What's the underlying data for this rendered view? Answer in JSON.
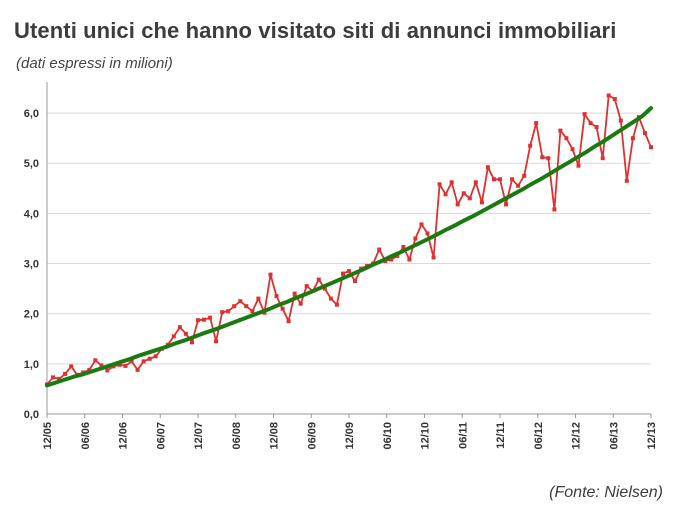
{
  "header": {
    "title": "Utenti unici che hanno visitato siti di annunci immobiliari",
    "subtitle": "(dati espressi in milioni)"
  },
  "footer": {
    "source": "(Fonte: Nielsen)"
  },
  "chart_data": {
    "type": "line",
    "title": "Utenti unici che hanno visitato siti di annunci immobiliari",
    "subtitle": "(dati espressi in milioni)",
    "ylim": [
      0,
      6.5
    ],
    "yticks": [
      "0,0",
      "1,0",
      "2,0",
      "3,0",
      "4,0",
      "5,0",
      "6,0"
    ],
    "ytick_values": [
      0,
      1,
      2,
      3,
      4,
      5,
      6
    ],
    "xticks": [
      "12/05",
      "06/06",
      "12/06",
      "06/07",
      "12/07",
      "06/08",
      "12/08",
      "06/09",
      "12/09",
      "06/10",
      "12/10",
      "06/11",
      "12/11",
      "06/12",
      "12/12",
      "06/13",
      "12/13"
    ],
    "grid": "horizontal",
    "colors": {
      "data": "#e03030",
      "trend": "#1a7a10",
      "grid": "#d9d9d9"
    },
    "series": [
      {
        "type": "line",
        "values": [
          0.59,
          0.73,
          0.7,
          0.8,
          0.95,
          0.78,
          0.83,
          0.88,
          1.07,
          0.97,
          0.87,
          0.95,
          0.98,
          0.96,
          1.05,
          0.88,
          1.05,
          1.1,
          1.15,
          1.3,
          1.38,
          1.55,
          1.73,
          1.6,
          1.43,
          1.87,
          1.88,
          1.92,
          1.45,
          2.03,
          2.05,
          2.15,
          2.25,
          2.15,
          2.05,
          2.3,
          2.02,
          2.78,
          2.35,
          2.1,
          1.85,
          2.4,
          2.2,
          2.55,
          2.45,
          2.68,
          2.5,
          2.3,
          2.18,
          2.8,
          2.85,
          2.65,
          2.9,
          2.95,
          3.0,
          3.28,
          3.05,
          3.08,
          3.15,
          3.33,
          3.08,
          3.5,
          3.78,
          3.6,
          3.12,
          4.58,
          4.38,
          4.62,
          4.18,
          4.4,
          4.3,
          4.62,
          4.22,
          4.92,
          4.68,
          4.68,
          4.18,
          4.68,
          4.55,
          4.75,
          5.35,
          5.8,
          5.12,
          5.1,
          4.08,
          5.65,
          5.5,
          5.28,
          4.95,
          5.98,
          5.8,
          5.72,
          5.1,
          6.35,
          6.28,
          5.85,
          4.65,
          5.5,
          5.92,
          5.6,
          5.32
        ]
      },
      {
        "type": "trend",
        "values": [
          0.57,
          0.63,
          0.69,
          0.75,
          0.8,
          0.86,
          0.92,
          0.98,
          1.04,
          1.1,
          1.17,
          1.23,
          1.29,
          1.35,
          1.42,
          1.48,
          1.55,
          1.62,
          1.68,
          1.75,
          1.82,
          1.89,
          1.96,
          2.03,
          2.1,
          2.18,
          2.25,
          2.33,
          2.4,
          2.48,
          2.56,
          2.64,
          2.72,
          2.8,
          2.88,
          2.97,
          3.05,
          3.14,
          3.22,
          3.31,
          3.4,
          3.49,
          3.58,
          3.68,
          3.77,
          3.87,
          3.96,
          4.06,
          4.16,
          4.26,
          4.36,
          4.46,
          4.57,
          4.67,
          4.78,
          4.89,
          5.0,
          5.11,
          5.22,
          5.34,
          5.45,
          5.57,
          5.69,
          5.81,
          5.93,
          6.1
        ]
      }
    ]
  }
}
